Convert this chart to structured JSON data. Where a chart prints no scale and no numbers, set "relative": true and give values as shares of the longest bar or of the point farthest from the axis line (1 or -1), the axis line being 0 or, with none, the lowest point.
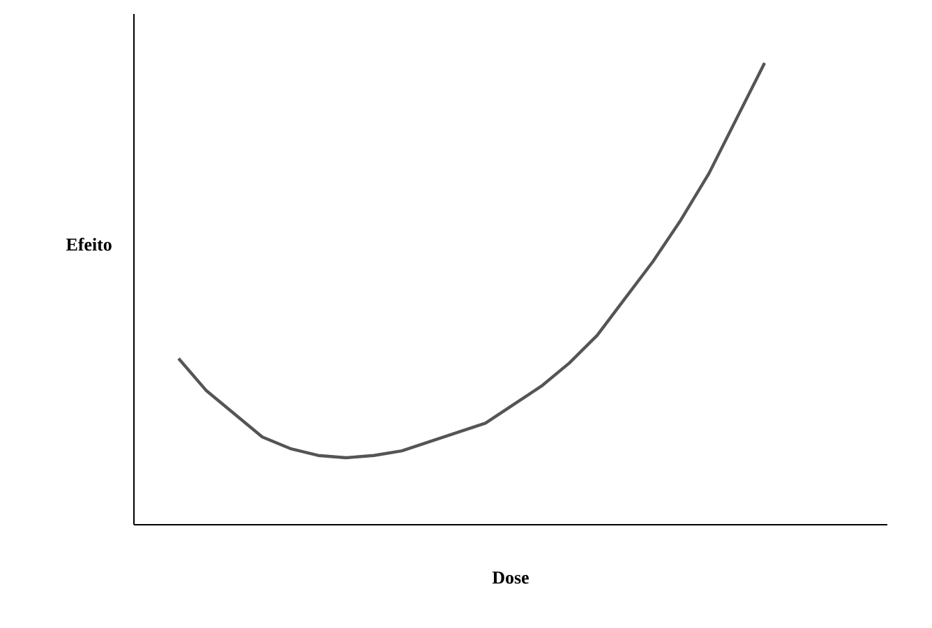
{
  "chart_data": {
    "type": "line",
    "relative": true,
    "xlabel": "Dose",
    "ylabel": "Efeito",
    "categories": [
      null,
      null,
      null,
      null,
      null,
      null,
      null,
      null,
      null,
      null,
      null,
      null,
      null,
      null,
      null,
      null,
      null,
      null,
      null,
      null,
      null,
      null
    ],
    "values": [
      0.36,
      0.29,
      0.24,
      0.19,
      0.165,
      0.15,
      0.145,
      0.15,
      0.16,
      0.18,
      0.2,
      0.22,
      0.26,
      0.3,
      0.35,
      0.41,
      0.49,
      0.57,
      0.66,
      0.76,
      0.88,
      1
    ],
    "color": "#555555",
    "marker": "none",
    "line_style": "solid"
  }
}
